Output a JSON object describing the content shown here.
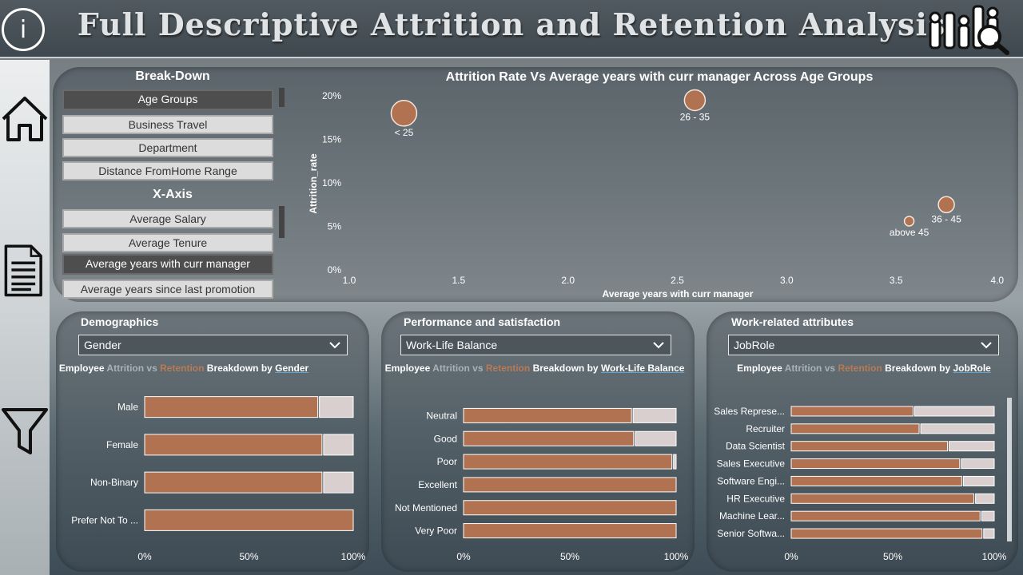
{
  "header": {
    "title": "Full Descriptive Attrition and Retention Analysis",
    "info_glyph": "i"
  },
  "nav": {
    "icons": [
      "home-icon",
      "report-icon",
      "filter-icon"
    ]
  },
  "colors": {
    "attrition": "#a8b1b7",
    "retention": "#b07250",
    "bar_rest": "#d9cfcf",
    "bubble": "#b07250"
  },
  "breakdown": {
    "title": "Break-Down",
    "items": [
      {
        "label": "Age Groups",
        "selected": true
      },
      {
        "label": "Business Travel",
        "selected": false
      },
      {
        "label": "Department",
        "selected": false
      },
      {
        "label": "Distance FromHome Range",
        "selected": false
      }
    ]
  },
  "xaxis_slicer": {
    "title": "X-Axis",
    "items": [
      {
        "label": "Average Salary",
        "selected": false
      },
      {
        "label": "Average Tenure",
        "selected": false
      },
      {
        "label": "Average years with curr manager",
        "selected": true
      },
      {
        "label": "Average years since last promotion",
        "selected": false
      }
    ]
  },
  "scatter": {
    "title": "Attrition Rate Vs Average years with curr manager Across Age Groups",
    "xlabel": "Average years with curr manager",
    "ylabel": "Attrition_rate",
    "xlim": [
      1.0,
      4.0
    ],
    "ylim": [
      0,
      20
    ],
    "x_ticks": [
      "1.0",
      "1.5",
      "2.0",
      "2.5",
      "3.0",
      "3.5",
      "4.0"
    ],
    "y_ticks": [
      "0%",
      "5%",
      "10%",
      "15%",
      "20%"
    ]
  },
  "demographics": {
    "header": "Demographics",
    "dropdown": "Gender",
    "subtitle": {
      "lead": "Employee",
      "attrition": "Attrition",
      "vs": "vs",
      "retention": "Retention",
      "mid": "Breakdown by",
      "dim": "Gender"
    }
  },
  "performance": {
    "header": "Performance and satisfaction",
    "dropdown": "Work-Life Balance",
    "subtitle": {
      "lead": "Employee",
      "attrition": "Attrition",
      "vs": "vs",
      "retention": "Retention",
      "mid": "Breakdown by",
      "dim": "Work-Life Balance"
    }
  },
  "work": {
    "header": "Work-related attributes",
    "dropdown": "JobRole",
    "subtitle": {
      "lead": "Employee",
      "attrition": "Attrition",
      "vs": "vs",
      "retention": "Retention",
      "mid": "Breakdown by",
      "dim": "JobRole"
    }
  },
  "chart_data": [
    {
      "type": "scatter",
      "title": "Attrition Rate Vs Average years with curr manager Across Age Groups",
      "xlabel": "Average years with curr manager",
      "ylabel": "Attrition_rate",
      "xlim": [
        1.0,
        4.0
      ],
      "ylim": [
        0,
        20
      ],
      "points": [
        {
          "label": "< 25",
          "x": 1.25,
          "y": 18.0,
          "size": 16
        },
        {
          "label": "26 - 35",
          "x": 2.58,
          "y": 19.5,
          "size": 13
        },
        {
          "label": "36 - 45",
          "x": 3.73,
          "y": 7.5,
          "size": 10
        },
        {
          "label": "above 45",
          "x": 3.56,
          "y": 5.6,
          "size": 6
        }
      ]
    },
    {
      "type": "bar",
      "orientation": "horizontal-stacked-100",
      "categories": [
        "Male",
        "Female",
        "Non-Binary",
        "Prefer Not To ..."
      ],
      "retention": [
        83,
        85,
        85,
        100
      ],
      "attrition": [
        17,
        15,
        15,
        0
      ],
      "x_ticks": [
        "0%",
        "50%",
        "100%"
      ]
    },
    {
      "type": "bar",
      "orientation": "horizontal-stacked-100",
      "categories": [
        "Neutral",
        "Good",
        "Poor",
        "Excellent",
        "Not Mentioned",
        "Very Poor"
      ],
      "retention": [
        79,
        80,
        98,
        100,
        100,
        100
      ],
      "attrition": [
        21,
        20,
        2,
        0,
        0,
        0
      ],
      "x_ticks": [
        "0%",
        "50%",
        "100%"
      ]
    },
    {
      "type": "bar",
      "orientation": "horizontal-stacked-100",
      "categories": [
        "Sales Represe...",
        "Recruiter",
        "Data Scientist",
        "Sales Executive",
        "Software Engi...",
        "HR Executive",
        "Machine Lear...",
        "Senior Softwa..."
      ],
      "retention": [
        60,
        63,
        77,
        83,
        84,
        90,
        93,
        94
      ],
      "attrition": [
        40,
        37,
        23,
        17,
        16,
        10,
        7,
        6
      ],
      "x_ticks": [
        "0%",
        "50%",
        "100%"
      ]
    }
  ]
}
